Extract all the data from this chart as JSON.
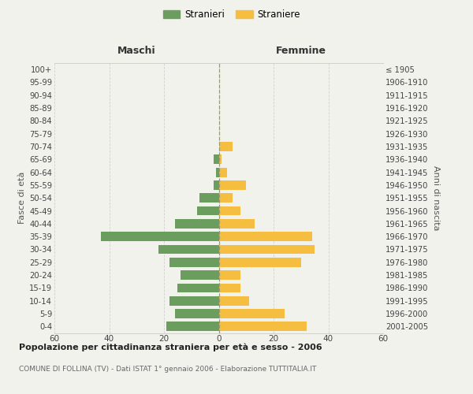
{
  "age_groups": [
    "0-4",
    "5-9",
    "10-14",
    "15-19",
    "20-24",
    "25-29",
    "30-34",
    "35-39",
    "40-44",
    "45-49",
    "50-54",
    "55-59",
    "60-64",
    "65-69",
    "70-74",
    "75-79",
    "80-84",
    "85-89",
    "90-94",
    "95-99",
    "100+"
  ],
  "birth_years": [
    "2001-2005",
    "1996-2000",
    "1991-1995",
    "1986-1990",
    "1981-1985",
    "1976-1980",
    "1971-1975",
    "1966-1970",
    "1961-1965",
    "1956-1960",
    "1951-1955",
    "1946-1950",
    "1941-1945",
    "1936-1940",
    "1931-1935",
    "1926-1930",
    "1921-1925",
    "1916-1920",
    "1911-1915",
    "1906-1910",
    "≤ 1905"
  ],
  "maschi": [
    19,
    16,
    18,
    15,
    14,
    18,
    22,
    43,
    16,
    8,
    7,
    2,
    1,
    2,
    0,
    0,
    0,
    0,
    0,
    0,
    0
  ],
  "femmine": [
    32,
    24,
    11,
    8,
    8,
    30,
    35,
    34,
    13,
    8,
    5,
    10,
    3,
    1,
    5,
    0,
    0,
    0,
    0,
    0,
    0
  ],
  "maschi_color": "#6b9e5e",
  "femmine_color": "#f5be41",
  "bg_color": "#f2f2ed",
  "grid_color": "#d0d0d0",
  "title": "Popolazione per cittadinanza straniera per età e sesso - 2006",
  "subtitle": "COMUNE DI FOLLINA (TV) - Dati ISTAT 1° gennaio 2006 - Elaborazione TUTTITALIA.IT",
  "ylabel_left": "Fasce di età",
  "ylabel_right": "Anni di nascita",
  "xlabel_maschi": "Maschi",
  "xlabel_femmine": "Femmine",
  "legend_stranieri": "Stranieri",
  "legend_straniere": "Straniere",
  "xlim": 60
}
